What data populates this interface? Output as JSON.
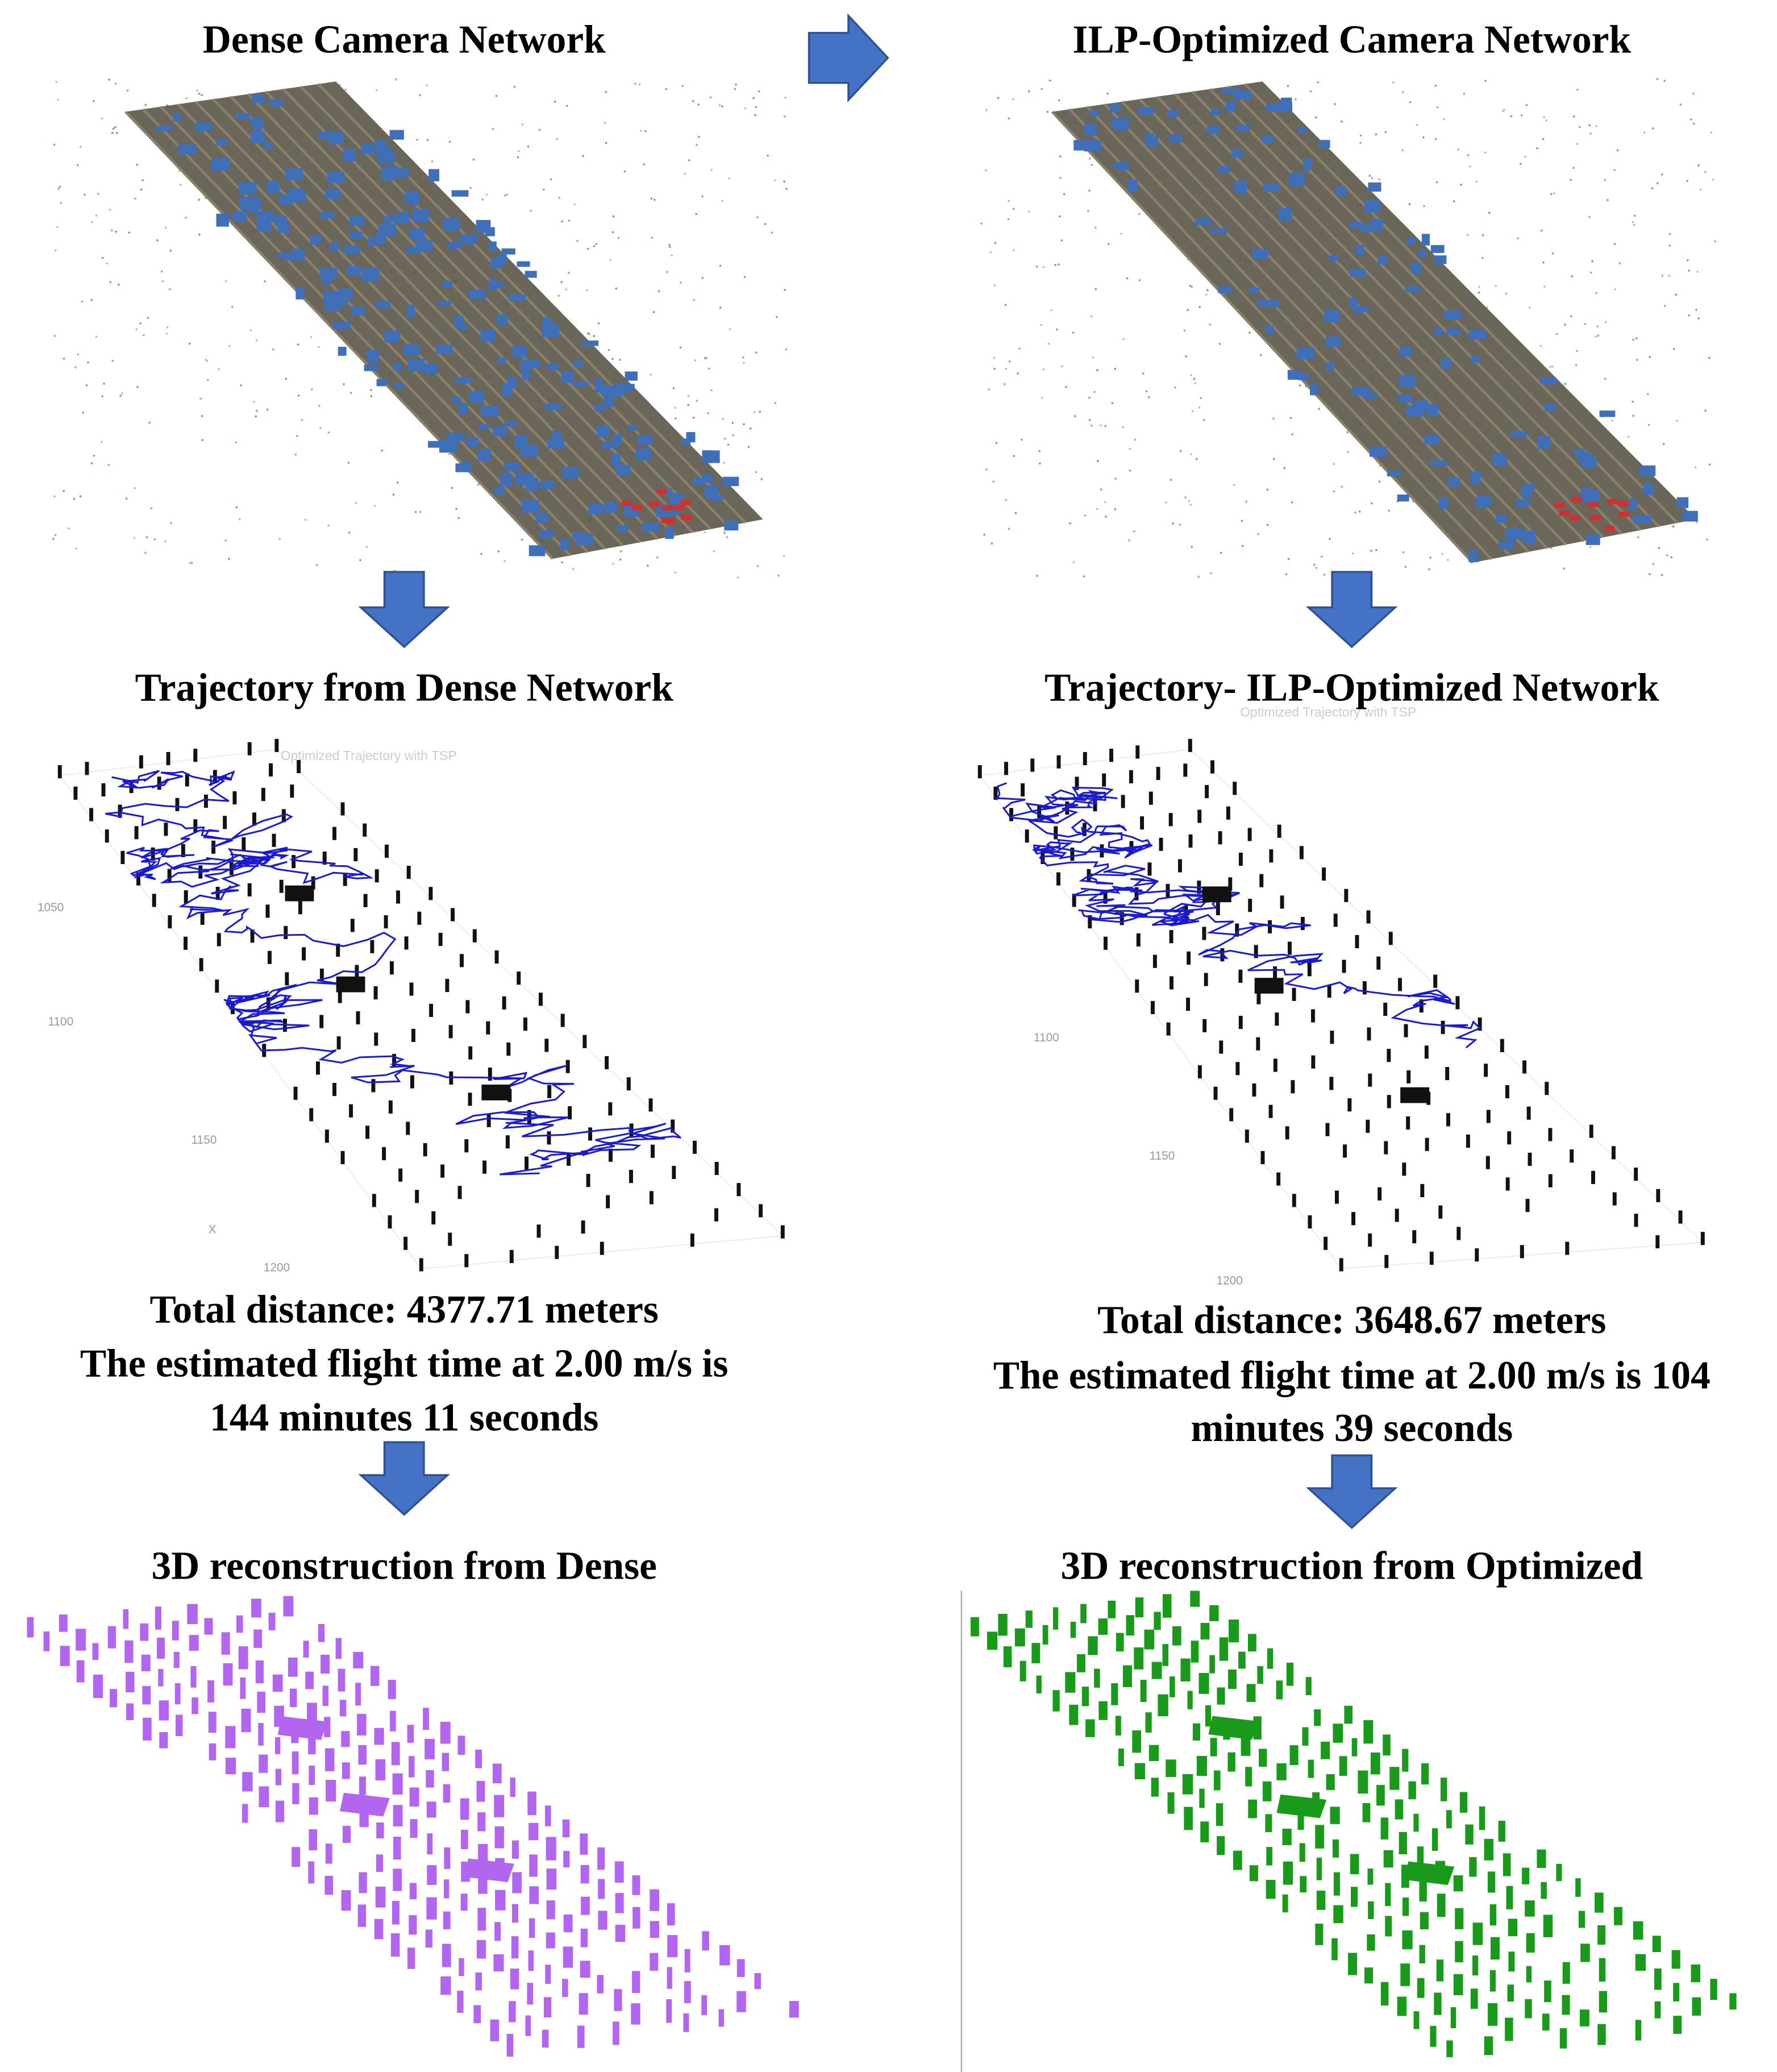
{
  "left": {
    "network_title": "Dense Camera Network",
    "trajectory_title": "Trajectory from Dense Network",
    "trajectory_plot_title": "Optimized Trajectory with TSP",
    "trajectory_axis_labels": [
      "1050",
      "1100",
      "1150",
      "X",
      "1200"
    ],
    "summary": [
      "Total distance: 4377.71 meters",
      "The estimated flight time at 2.00 m/s is",
      "144 minutes 11 seconds"
    ],
    "reconstruction_title": "3D reconstruction from Dense"
  },
  "right": {
    "network_title": "ILP-Optimized Camera Network",
    "trajectory_title": "Trajectory- ILP-Optimized Network",
    "trajectory_plot_title": "Optimized Trajectory with TSP",
    "trajectory_axis_labels": [
      "1100",
      "1150",
      "1200"
    ],
    "summary": [
      "Total distance: 3648.67 meters",
      "The estimated flight time at 2.00 m/s is 104",
      "minutes 39 seconds"
    ],
    "reconstruction_title": "3D reconstruction from Optimized"
  }
}
